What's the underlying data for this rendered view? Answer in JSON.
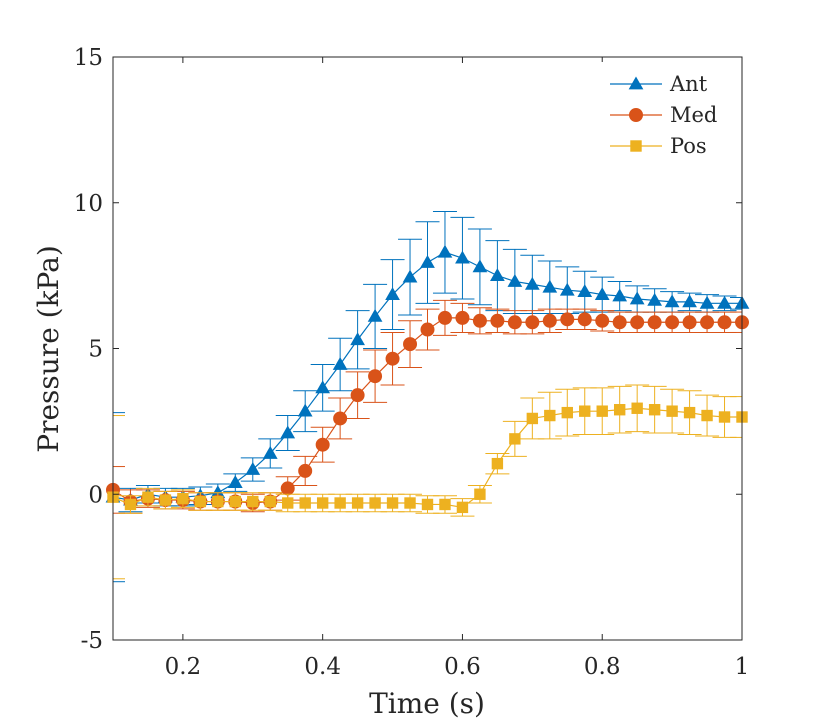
{
  "chart_data": {
    "type": "line",
    "title": "",
    "xlabel": "Time (s)",
    "ylabel": "Pressure (kPa)",
    "xlim": [
      0.1,
      1.0
    ],
    "ylim": [
      -5,
      15
    ],
    "xticks": [
      0.2,
      0.4,
      0.6,
      0.8,
      1.0
    ],
    "xtick_labels": [
      "0.2",
      "0.4",
      "0.6",
      "0.8",
      "1"
    ],
    "yticks": [
      -5,
      0,
      5,
      10,
      15
    ],
    "ytick_labels": [
      "-5",
      "0",
      "5",
      "10",
      "15"
    ],
    "grid": false,
    "legend_position": "top-right",
    "x": [
      0.1,
      0.125,
      0.15,
      0.175,
      0.2,
      0.225,
      0.25,
      0.275,
      0.3,
      0.325,
      0.35,
      0.375,
      0.4,
      0.425,
      0.45,
      0.475,
      0.5,
      0.525,
      0.55,
      0.575,
      0.6,
      0.625,
      0.65,
      0.675,
      0.7,
      0.725,
      0.75,
      0.775,
      0.8,
      0.825,
      0.85,
      0.875,
      0.9,
      0.925,
      0.95,
      0.975,
      1.0
    ],
    "series": [
      {
        "name": "Ant",
        "color": "#0072BD",
        "marker": "triangle",
        "values": [
          -0.1,
          -0.2,
          0.0,
          -0.1,
          -0.1,
          -0.05,
          0.05,
          0.4,
          0.85,
          1.4,
          2.1,
          2.85,
          3.65,
          4.45,
          5.3,
          6.1,
          6.85,
          7.45,
          7.95,
          8.3,
          8.1,
          7.8,
          7.5,
          7.3,
          7.2,
          7.1,
          7.0,
          6.95,
          6.85,
          6.8,
          6.7,
          6.65,
          6.6,
          6.6,
          6.55,
          6.55,
          6.55
        ],
        "errors": [
          2.9,
          0.4,
          0.3,
          0.3,
          0.3,
          0.3,
          0.3,
          0.3,
          0.4,
          0.5,
          0.6,
          0.7,
          0.8,
          0.9,
          1.0,
          1.1,
          1.2,
          1.3,
          1.4,
          1.4,
          1.4,
          1.3,
          1.2,
          1.1,
          1.0,
          0.9,
          0.8,
          0.7,
          0.6,
          0.5,
          0.45,
          0.4,
          0.35,
          0.3,
          0.3,
          0.25,
          0.2
        ]
      },
      {
        "name": "Med",
        "color": "#D95319",
        "marker": "circle",
        "values": [
          0.15,
          -0.25,
          -0.15,
          -0.2,
          -0.2,
          -0.25,
          -0.25,
          -0.25,
          -0.3,
          -0.25,
          0.2,
          0.8,
          1.7,
          2.6,
          3.4,
          4.05,
          4.65,
          5.15,
          5.65,
          6.05,
          6.05,
          5.95,
          5.95,
          5.9,
          5.9,
          5.95,
          6.0,
          6.0,
          5.95,
          5.9,
          5.9,
          5.9,
          5.9,
          5.9,
          5.9,
          5.9,
          5.9
        ],
        "errors": [
          0.8,
          0.4,
          0.3,
          0.3,
          0.3,
          0.3,
          0.3,
          0.3,
          0.3,
          0.3,
          0.4,
          0.5,
          0.6,
          0.7,
          0.8,
          0.9,
          0.9,
          0.8,
          0.7,
          0.6,
          0.5,
          0.45,
          0.4,
          0.4,
          0.4,
          0.4,
          0.35,
          0.35,
          0.35,
          0.35,
          0.35,
          0.35,
          0.35,
          0.35,
          0.35,
          0.35,
          0.35
        ]
      },
      {
        "name": "Pos",
        "color": "#EDB120",
        "marker": "square",
        "values": [
          -0.1,
          -0.35,
          -0.1,
          -0.2,
          -0.15,
          -0.25,
          -0.25,
          -0.25,
          -0.25,
          -0.25,
          -0.3,
          -0.3,
          -0.3,
          -0.3,
          -0.3,
          -0.3,
          -0.3,
          -0.3,
          -0.35,
          -0.35,
          -0.45,
          0.0,
          1.05,
          1.9,
          2.6,
          2.7,
          2.8,
          2.85,
          2.85,
          2.9,
          2.95,
          2.9,
          2.85,
          2.8,
          2.7,
          2.65,
          2.65
        ],
        "errors": [
          2.8,
          0.3,
          0.3,
          0.3,
          0.3,
          0.3,
          0.3,
          0.3,
          0.3,
          0.3,
          0.3,
          0.3,
          0.3,
          0.3,
          0.3,
          0.3,
          0.3,
          0.3,
          0.3,
          0.3,
          0.3,
          0.3,
          0.35,
          0.6,
          0.7,
          0.8,
          0.8,
          0.8,
          0.8,
          0.8,
          0.8,
          0.8,
          0.75,
          0.75,
          0.7,
          0.7,
          0.7
        ]
      }
    ]
  }
}
